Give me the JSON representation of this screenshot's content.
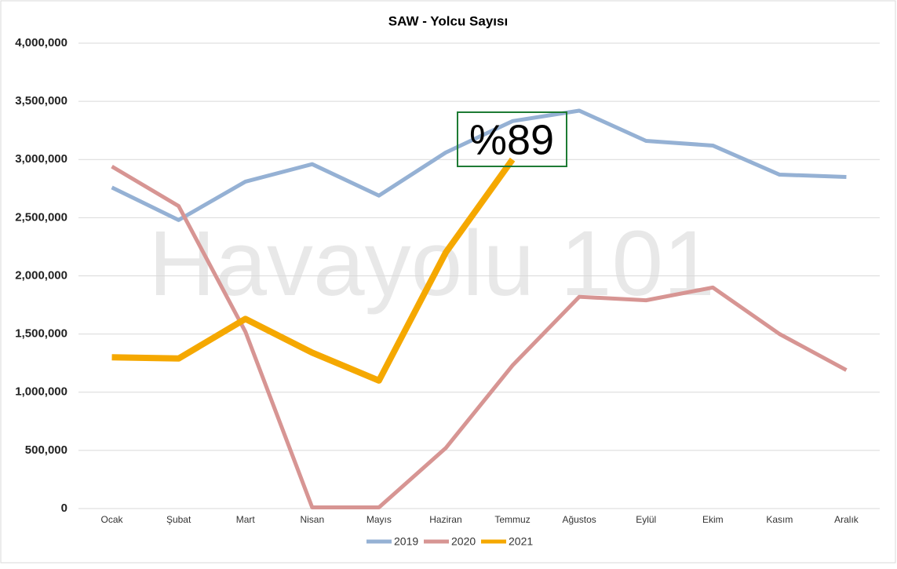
{
  "chart_data": {
    "type": "line",
    "title": "SAW - Yolcu Sayısı",
    "categories": [
      "Ocak",
      "Şubat",
      "Mart",
      "Nisan",
      "Mayıs",
      "Haziran",
      "Temmuz",
      "Ağustos",
      "Eylül",
      "Ekim",
      "Kasım",
      "Aralık"
    ],
    "series": [
      {
        "name": "2019",
        "color": "#95b1d4",
        "values": [
          2760000,
          2480000,
          2810000,
          2960000,
          2690000,
          3060000,
          3330000,
          3420000,
          3160000,
          3120000,
          2870000,
          2850000
        ]
      },
      {
        "name": "2020",
        "color": "#d79593",
        "values": [
          2940000,
          2600000,
          1520000,
          10000,
          10000,
          520000,
          1230000,
          1820000,
          1790000,
          1900000,
          1500000,
          1190000
        ]
      },
      {
        "name": "2021",
        "color": "#f5a800",
        "values": [
          1300000,
          1290000,
          1630000,
          1340000,
          1100000,
          2200000,
          3000000,
          null,
          null,
          null,
          null,
          null
        ]
      }
    ],
    "ylim": [
      0,
      4000000
    ],
    "yticks": [
      0,
      {
        "value": 500000,
        "label": "500,000"
      },
      {
        "value": 1000000,
        "label": "1,000,000"
      },
      {
        "value": 1500000,
        "label": "1,500,000"
      },
      {
        "value": 2000000,
        "label": "2,000,000"
      },
      {
        "value": 2500000,
        "label": "2,500,000"
      },
      {
        "value": 3000000,
        "label": "3,000,000"
      },
      {
        "value": 3500000,
        "label": "3,500,000"
      },
      {
        "value": 4000000,
        "label": "4,000,000"
      }
    ],
    "grid": true,
    "legend": "bottom",
    "annotation": "%89",
    "watermark": "Havayolu 101"
  }
}
